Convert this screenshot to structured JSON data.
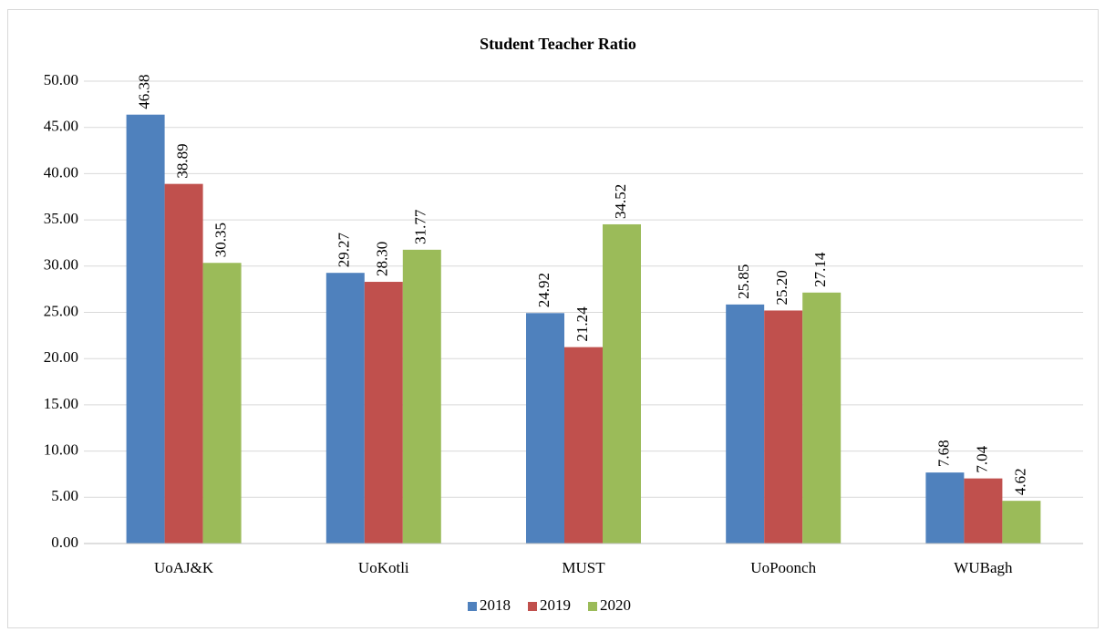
{
  "chart_data": {
    "type": "bar",
    "title": "Student Teacher Ratio",
    "categories": [
      "UoAJ&K",
      "UoKotli",
      "MUST",
      "UoPoonch",
      "WUBagh"
    ],
    "series": [
      {
        "name": "2018",
        "color": "#4f81bd",
        "values": [
          46.38,
          29.27,
          24.92,
          25.85,
          7.68
        ],
        "value_labels": [
          "46.38",
          "29.27",
          "24.92",
          "25.85",
          "7.68"
        ]
      },
      {
        "name": "2019",
        "color": "#c0504d",
        "values": [
          38.89,
          28.3,
          21.24,
          25.2,
          7.04
        ],
        "value_labels": [
          "38.89",
          "28.30",
          "21.24",
          "25.20",
          "7.04"
        ]
      },
      {
        "name": "2020",
        "color": "#9bbb59",
        "values": [
          30.35,
          31.77,
          34.52,
          27.14,
          4.62
        ],
        "value_labels": [
          "30.35",
          "31.77",
          "34.52",
          "27.14",
          "4.62"
        ]
      }
    ],
    "ylim": [
      0,
      50
    ],
    "yticks": [
      {
        "value": 0,
        "label": "0.00"
      },
      {
        "value": 5,
        "label": "5.00"
      },
      {
        "value": 10,
        "label": "10.00"
      },
      {
        "value": 15,
        "label": "15.00"
      },
      {
        "value": 20,
        "label": "20.00"
      },
      {
        "value": 25,
        "label": "25.00"
      },
      {
        "value": 30,
        "label": "30.00"
      },
      {
        "value": 35,
        "label": "35.00"
      },
      {
        "value": 40,
        "label": "40.00"
      },
      {
        "value": 45,
        "label": "45.00"
      },
      {
        "value": 50,
        "label": "50.00"
      }
    ],
    "grid": true,
    "legend": "bottom"
  }
}
